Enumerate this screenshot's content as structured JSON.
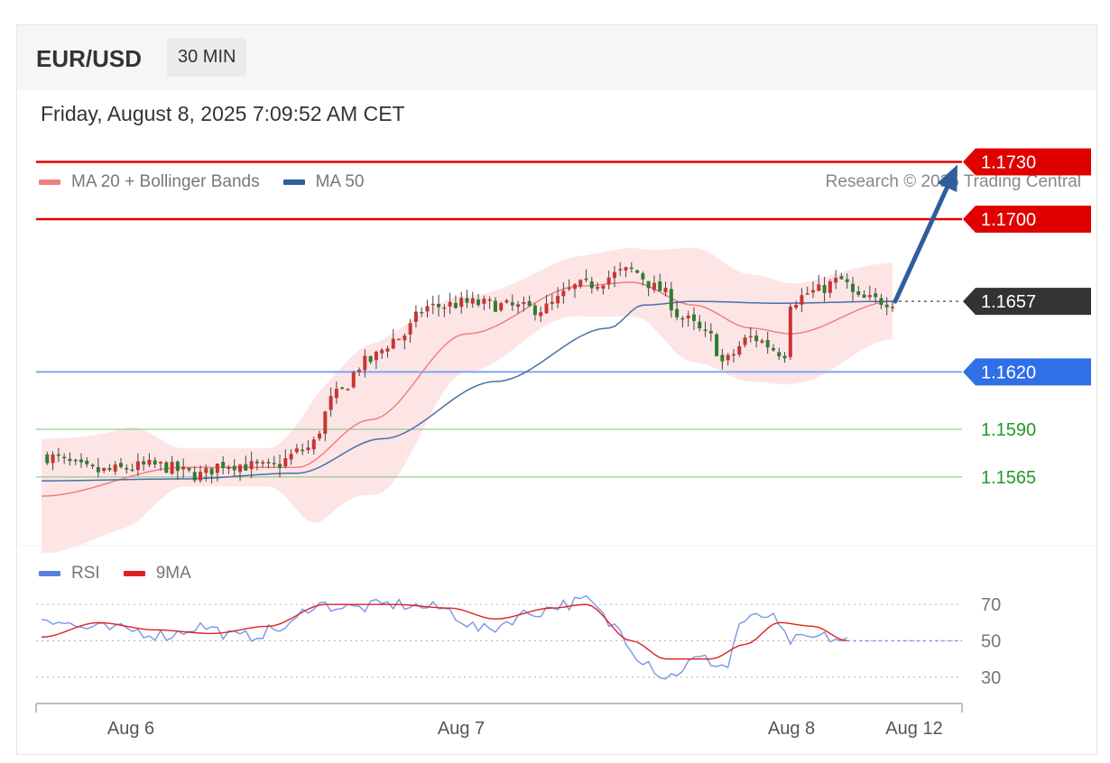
{
  "header": {
    "symbol": "EUR/USD",
    "timeframe": "30 MIN",
    "datetime": "Friday, August 8, 2025 7:09:52 AM CET"
  },
  "price_panel": {
    "legend": [
      {
        "label": "MA 20 + Bollinger Bands",
        "color": "#f08080"
      },
      {
        "label": "MA 50",
        "color": "#2f5d9e"
      }
    ],
    "credit": "Research © 2025 Trading Central"
  },
  "rsi_panel": {
    "legend": [
      {
        "label": "RSI",
        "color": "#5b7fe0"
      },
      {
        "label": "9MA",
        "color": "#e02020"
      }
    ]
  },
  "colors": {
    "resistance": "#e00000",
    "support": "#2f6fe8",
    "support_minor": "#229922",
    "current": "#333333",
    "bull_candle": "#cc3333",
    "bear_candle": "#2e7d32",
    "band_fill": "#fde0e0",
    "ma20": "#f08080",
    "ma50": "#4a6fa8",
    "arrow": "#2f5d9e"
  },
  "chart_data": {
    "type": "candlestick",
    "instrument": "EUR/USD",
    "interval": "30 MIN",
    "ylim": [
      1.153,
      1.176
    ],
    "x_ticks": [
      "Aug 6",
      "Aug 7",
      "Aug 8",
      "Aug 12"
    ],
    "levels": [
      {
        "value": 1.173,
        "label": "1.1730",
        "kind": "resistance",
        "style": "tag"
      },
      {
        "value": 1.17,
        "label": "1.1700",
        "kind": "resistance",
        "style": "tag"
      },
      {
        "value": 1.1657,
        "label": "1.1657",
        "kind": "current",
        "style": "tag"
      },
      {
        "value": 1.162,
        "label": "1.1620",
        "kind": "support",
        "style": "tag"
      },
      {
        "value": 1.159,
        "label": "1.1590",
        "kind": "support_minor",
        "style": "text"
      },
      {
        "value": 1.1565,
        "label": "1.1565",
        "kind": "support_minor",
        "style": "text"
      }
    ],
    "arrow": {
      "from": 1.1657,
      "to": 1.173
    },
    "close_anchors": [
      [
        0,
        1.1576
      ],
      [
        10,
        1.1568
      ],
      [
        20,
        1.1571
      ],
      [
        28,
        1.1566
      ],
      [
        32,
        1.1572
      ],
      [
        40,
        1.157
      ],
      [
        47,
        1.158
      ],
      [
        52,
        1.1608
      ],
      [
        57,
        1.1625
      ],
      [
        63,
        1.1638
      ],
      [
        68,
        1.1654
      ],
      [
        75,
        1.1656
      ],
      [
        88,
        1.1653
      ],
      [
        95,
        1.1665
      ],
      [
        104,
        1.1673
      ],
      [
        109,
        1.1663
      ],
      [
        113,
        1.1648
      ],
      [
        118,
        1.1638
      ],
      [
        120,
        1.1625
      ],
      [
        125,
        1.1638
      ],
      [
        131,
        1.163
      ],
      [
        132,
        1.1657
      ],
      [
        136,
        1.1662
      ],
      [
        141,
        1.1668
      ],
      [
        144,
        1.1658
      ],
      [
        150,
        1.1657
      ]
    ],
    "ma20_anchors": [
      [
        0,
        1.1555
      ],
      [
        25,
        1.157
      ],
      [
        45,
        1.157
      ],
      [
        58,
        1.1595
      ],
      [
        75,
        1.164
      ],
      [
        95,
        1.1665
      ],
      [
        104,
        1.1667
      ],
      [
        115,
        1.1655
      ],
      [
        125,
        1.1643
      ],
      [
        132,
        1.164
      ],
      [
        150,
        1.1657
      ]
    ],
    "ma50_anchors": [
      [
        0,
        1.1563
      ],
      [
        25,
        1.1564
      ],
      [
        45,
        1.1567
      ],
      [
        60,
        1.1585
      ],
      [
        80,
        1.1615
      ],
      [
        100,
        1.1643
      ],
      [
        106,
        1.1655
      ],
      [
        115,
        1.1657
      ],
      [
        130,
        1.1656
      ],
      [
        150,
        1.1657
      ]
    ],
    "band_width_anchors": [
      [
        0,
        0.003
      ],
      [
        15,
        0.0026
      ],
      [
        25,
        0.001
      ],
      [
        40,
        0.001
      ],
      [
        50,
        0.0035
      ],
      [
        60,
        0.004
      ],
      [
        75,
        0.002
      ],
      [
        90,
        0.0015
      ],
      [
        105,
        0.0018
      ],
      [
        115,
        0.003
      ],
      [
        125,
        0.0028
      ],
      [
        135,
        0.0026
      ],
      [
        150,
        0.002
      ]
    ],
    "rsi": {
      "ylim": [
        20,
        80
      ],
      "levels": [
        70,
        50,
        30
      ],
      "anchors": [
        [
          0,
          63
        ],
        [
          8,
          57
        ],
        [
          15,
          56
        ],
        [
          22,
          53
        ],
        [
          28,
          58
        ],
        [
          35,
          52
        ],
        [
          43,
          57
        ],
        [
          48,
          70
        ],
        [
          55,
          68
        ],
        [
          62,
          70
        ],
        [
          70,
          68
        ],
        [
          78,
          56
        ],
        [
          86,
          65
        ],
        [
          92,
          70
        ],
        [
          96,
          72
        ],
        [
          101,
          58
        ],
        [
          106,
          40
        ],
        [
          110,
          30
        ],
        [
          116,
          40
        ],
        [
          121,
          36
        ],
        [
          123,
          60
        ],
        [
          128,
          64
        ],
        [
          132,
          50
        ],
        [
          138,
          52
        ],
        [
          142,
          50
        ]
      ],
      "ma_anchors": [
        [
          0,
          52
        ],
        [
          10,
          60
        ],
        [
          20,
          56
        ],
        [
          30,
          54
        ],
        [
          40,
          58
        ],
        [
          50,
          70
        ],
        [
          62,
          70
        ],
        [
          72,
          68
        ],
        [
          80,
          62
        ],
        [
          90,
          68
        ],
        [
          96,
          70
        ],
        [
          104,
          50
        ],
        [
          110,
          40
        ],
        [
          118,
          40
        ],
        [
          124,
          48
        ],
        [
          130,
          60
        ],
        [
          136,
          58
        ],
        [
          142,
          50
        ]
      ]
    }
  }
}
